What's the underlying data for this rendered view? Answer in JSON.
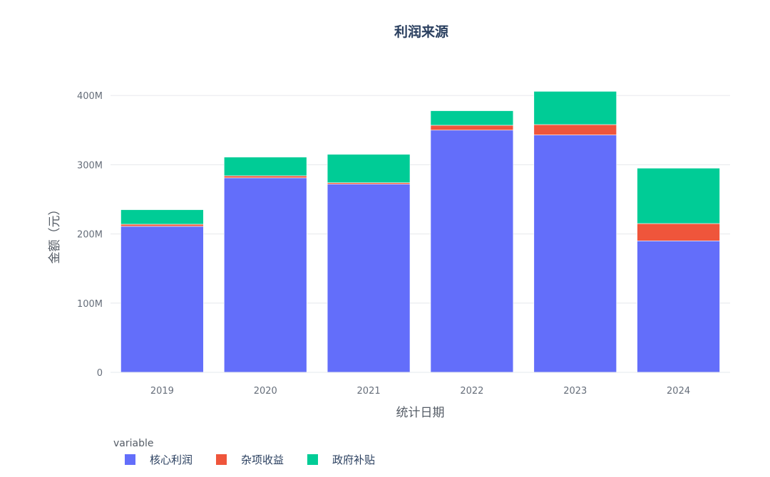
{
  "chart_data": {
    "type": "bar",
    "stacked": true,
    "title": "利润来源",
    "xlabel": "统计日期",
    "ylabel": "金额（元）",
    "categories": [
      "2019",
      "2020",
      "2021",
      "2022",
      "2023",
      "2024"
    ],
    "ylim": [
      0,
      430000000
    ],
    "yticks": [
      {
        "value": 0,
        "label": "0"
      },
      {
        "value": 100000000,
        "label": "100M"
      },
      {
        "value": 200000000,
        "label": "200M"
      },
      {
        "value": 300000000,
        "label": "300M"
      },
      {
        "value": 400000000,
        "label": "400M"
      }
    ],
    "legend_title": "variable",
    "legend_position": "bottom-left",
    "grid": true,
    "series": [
      {
        "name": "核心利润",
        "color": "#636efa",
        "values": [
          211000000,
          281000000,
          272000000,
          350000000,
          343000000,
          190000000
        ]
      },
      {
        "name": "杂项收益",
        "color": "#ef553b",
        "values": [
          3000000,
          3000000,
          2000000,
          7000000,
          15000000,
          25000000
        ]
      },
      {
        "name": "政府补贴",
        "color": "#00cc96",
        "values": [
          21000000,
          27000000,
          41000000,
          21000000,
          48000000,
          80000000
        ]
      }
    ]
  }
}
